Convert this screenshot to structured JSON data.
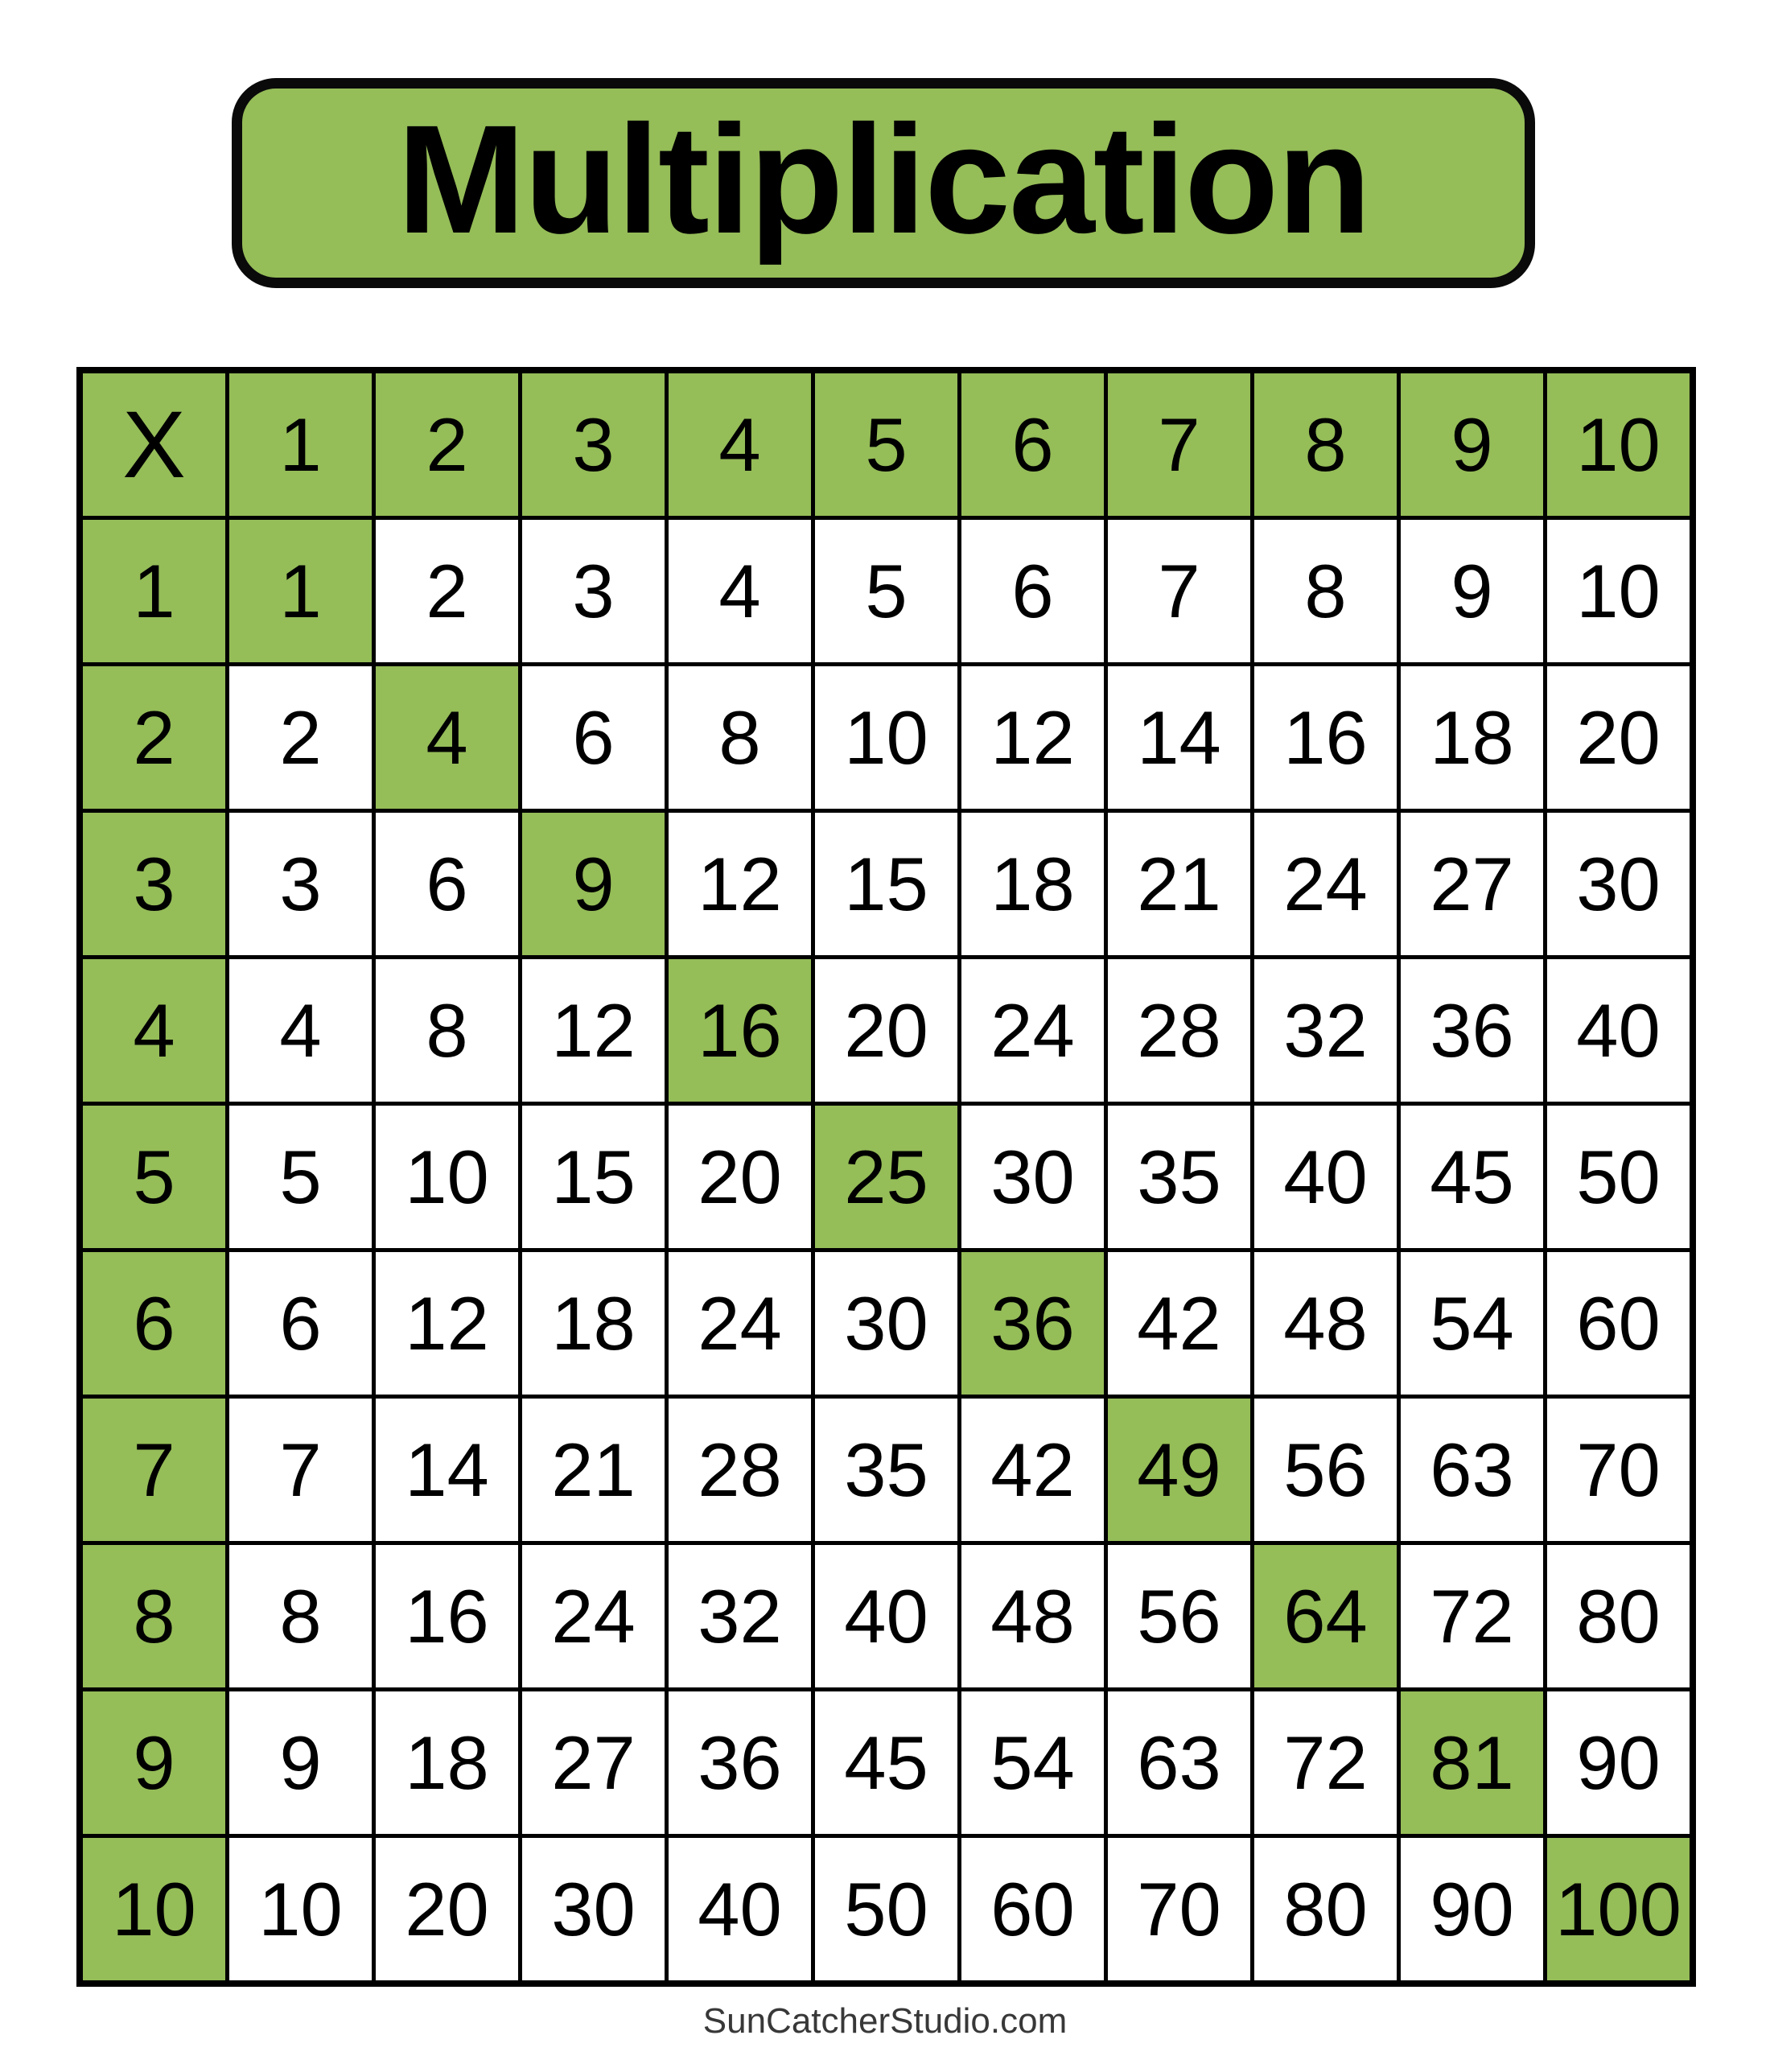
{
  "title": "Multiplication",
  "footer": "SunCatcherStudio.com",
  "colors": {
    "highlight_green": "#95bd58",
    "border_black": "#000000",
    "text_black": "#000000",
    "footer_gray": "#383838",
    "background": "#ffffff"
  },
  "chart_data": {
    "type": "table",
    "title": "Multiplication",
    "corner_label": "X",
    "col_headers": [
      "1",
      "2",
      "3",
      "4",
      "5",
      "6",
      "7",
      "8",
      "9",
      "10"
    ],
    "row_headers": [
      "1",
      "2",
      "3",
      "4",
      "5",
      "6",
      "7",
      "8",
      "9",
      "10"
    ],
    "cells": [
      [
        1,
        2,
        3,
        4,
        5,
        6,
        7,
        8,
        9,
        10
      ],
      [
        2,
        4,
        6,
        8,
        10,
        12,
        14,
        16,
        18,
        20
      ],
      [
        3,
        6,
        9,
        12,
        15,
        18,
        21,
        24,
        27,
        30
      ],
      [
        4,
        8,
        12,
        16,
        20,
        24,
        28,
        32,
        36,
        40
      ],
      [
        5,
        10,
        15,
        20,
        25,
        30,
        35,
        40,
        45,
        50
      ],
      [
        6,
        12,
        18,
        24,
        30,
        36,
        42,
        48,
        54,
        60
      ],
      [
        7,
        14,
        21,
        28,
        35,
        42,
        49,
        56,
        63,
        70
      ],
      [
        8,
        16,
        24,
        32,
        40,
        48,
        56,
        64,
        72,
        80
      ],
      [
        9,
        18,
        27,
        36,
        45,
        54,
        63,
        72,
        81,
        90
      ],
      [
        10,
        20,
        30,
        40,
        50,
        60,
        70,
        80,
        90,
        100
      ]
    ],
    "highlighted": "header row, header column, and diagonal perfect-square cells are green"
  }
}
